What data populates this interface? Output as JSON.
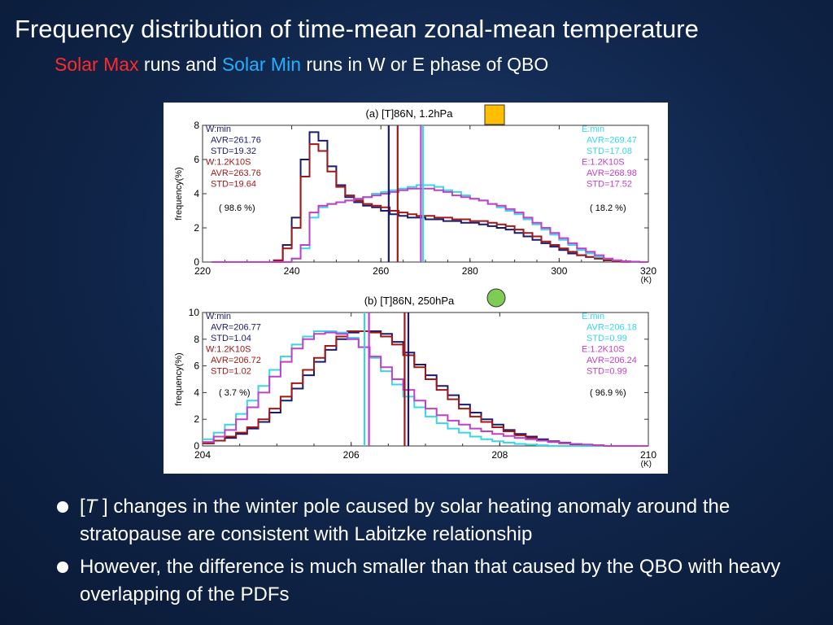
{
  "slide": {
    "title": "Frequency distribution of time-mean zonal-mean temperature",
    "subtitle_part1": "Solar Max",
    "subtitle_part2": " runs and ",
    "subtitle_part3": "Solar Min",
    "subtitle_part4": " runs in W or E phase of QBO",
    "bullet1_open": "[",
    "bullet1_T": "T",
    "bullet1_rest": " ] changes in the winter pole caused by solar heating anomaly around the stratopause are consistent with Labitzke relationship",
    "bullet2": "However, the difference is much smaller than that caused by the QBO with heavy overlapping of the PDFs"
  },
  "colors": {
    "w_min": "#1a1a6e",
    "w_1k": "#a01818",
    "e_min": "#38d6e8",
    "e_1k": "#c040c8",
    "marker_a": "#ffbf00",
    "marker_b": "#7ecb55"
  },
  "chart_data": [
    {
      "type": "line",
      "title": "(a) [T]86N, 1.2hPa",
      "ylabel": "frequency(%)",
      "unit": "(K)",
      "xlim": [
        220,
        320
      ],
      "ylim": [
        0,
        8
      ],
      "xticks": [
        220,
        240,
        260,
        280,
        300,
        320
      ],
      "yticks": [
        0,
        2,
        4,
        6,
        8
      ],
      "left_pct": "( 98.6 %)",
      "right_pct": "( 18.2 %)",
      "annotations_left": [
        "W:min",
        "AVR=261.76",
        "STD=19.32",
        "W:1.2K10S",
        "AVR=263.76",
        "STD=19.64"
      ],
      "annotations_right": [
        "E:min",
        "AVR=269.47",
        "STD=17.08",
        "E:1.2K10S",
        "AVR=268.98",
        "STD=17.52"
      ],
      "means": {
        "w_min": 261.76,
        "w_1k": 263.76,
        "e_min": 269.47,
        "e_1k": 268.98
      },
      "bin_start": 222,
      "bin_width": 2,
      "series": [
        {
          "key": "w_min",
          "values": [
            0,
            0,
            0,
            0,
            0,
            0,
            0,
            0.1,
            1.0,
            2.6,
            6.0,
            7.6,
            7.1,
            5.6,
            4.5,
            3.8,
            3.5,
            3.3,
            3.2,
            3.0,
            2.8,
            2.7,
            2.6,
            2.6,
            2.5,
            2.5,
            2.4,
            2.4,
            2.3,
            2.3,
            2.2,
            2.1,
            2.0,
            1.9,
            1.7,
            1.5,
            1.3,
            1.1,
            0.9,
            0.7,
            0.5,
            0.4,
            0.3,
            0.2,
            0.1,
            0.05,
            0.02,
            0.01,
            0.0
          ]
        },
        {
          "key": "w_1k",
          "values": [
            0,
            0,
            0,
            0,
            0,
            0,
            0,
            0.1,
            0.8,
            2.0,
            5.0,
            6.9,
            6.5,
            5.3,
            4.4,
            3.9,
            3.6,
            3.4,
            3.3,
            3.2,
            3.0,
            2.9,
            2.8,
            2.7,
            2.7,
            2.6,
            2.6,
            2.5,
            2.5,
            2.4,
            2.4,
            2.3,
            2.2,
            2.1,
            1.9,
            1.7,
            1.5,
            1.2,
            1.0,
            0.8,
            0.6,
            0.4,
            0.3,
            0.2,
            0.1,
            0.05,
            0.02,
            0.01,
            0.0
          ]
        },
        {
          "key": "e_min",
          "values": [
            0,
            0,
            0,
            0,
            0,
            0,
            0,
            0,
            0,
            0.2,
            0.8,
            2.6,
            3.2,
            3.4,
            3.5,
            3.6,
            3.7,
            3.8,
            4.0,
            4.1,
            4.2,
            4.3,
            4.4,
            4.5,
            4.5,
            4.4,
            4.2,
            4.1,
            3.9,
            3.7,
            3.6,
            3.4,
            3.2,
            3.0,
            2.8,
            2.5,
            2.2,
            1.9,
            1.6,
            1.3,
            1.0,
            0.7,
            0.5,
            0.3,
            0.2,
            0.1,
            0.05,
            0.0,
            0.0
          ]
        },
        {
          "key": "e_1k",
          "values": [
            0,
            0,
            0,
            0,
            0,
            0,
            0,
            0,
            0,
            0.2,
            1.0,
            2.9,
            3.3,
            3.4,
            3.5,
            3.6,
            3.7,
            3.8,
            3.9,
            4.0,
            4.1,
            4.2,
            4.3,
            4.3,
            4.3,
            4.2,
            4.1,
            3.9,
            3.8,
            3.7,
            3.6,
            3.4,
            3.3,
            3.1,
            2.9,
            2.6,
            2.3,
            2.0,
            1.7,
            1.4,
            1.1,
            0.8,
            0.6,
            0.4,
            0.2,
            0.1,
            0.05,
            0.02,
            0.0
          ]
        }
      ]
    },
    {
      "type": "line",
      "title": "(b) [T]86N, 250hPa",
      "ylabel": "frequency(%)",
      "unit": "(K)",
      "xlim": [
        204,
        210
      ],
      "ylim": [
        0,
        10
      ],
      "xticks": [
        204,
        206,
        208,
        210
      ],
      "yticks": [
        0,
        2,
        4,
        6,
        8,
        10
      ],
      "xtick_labels": [
        "204",
        "206",
        "208",
        "210"
      ],
      "left_pct": "( 3.7 %)",
      "right_pct": "( 96.9 %)",
      "annotations_left": [
        "W:min",
        "AVR=206.77",
        "STD=1.04",
        "W:1.2K10S",
        "AVR=206.72",
        "STD=1.02"
      ],
      "annotations_right": [
        "E:min",
        "AVR=206.18",
        "STD=0.99",
        "E:1.2K10S",
        "AVR=206.24",
        "STD=0.99"
      ],
      "means": {
        "w_min": 206.77,
        "w_1k": 206.72,
        "e_min": 206.18,
        "e_1k": 206.24
      },
      "bin_start": 204.0,
      "bin_width": 0.15,
      "series": [
        {
          "key": "w_min",
          "values": [
            0.2,
            0.4,
            0.6,
            0.9,
            1.3,
            1.8,
            2.5,
            3.4,
            4.3,
            5.3,
            6.3,
            7.2,
            8.0,
            8.5,
            8.6,
            8.6,
            8.4,
            7.8,
            7.0,
            6.1,
            5.3,
            4.5,
            3.8,
            3.1,
            2.5,
            2.0,
            1.6,
            1.2,
            0.9,
            0.7,
            0.5,
            0.35,
            0.25,
            0.15,
            0.1,
            0.05,
            0.0,
            0.0,
            0.0,
            0.0
          ]
        },
        {
          "key": "w_1k",
          "values": [
            0.2,
            0.4,
            0.7,
            1.0,
            1.4,
            2.0,
            2.8,
            3.7,
            4.7,
            5.7,
            6.6,
            7.5,
            8.2,
            8.6,
            8.6,
            8.5,
            8.2,
            7.6,
            6.8,
            5.9,
            5.0,
            4.2,
            3.5,
            2.8,
            2.2,
            1.8,
            1.4,
            1.1,
            0.8,
            0.6,
            0.4,
            0.3,
            0.2,
            0.12,
            0.08,
            0.04,
            0.0,
            0.0,
            0.0,
            0.0
          ]
        },
        {
          "key": "e_min",
          "values": [
            0.5,
            1.0,
            1.6,
            2.4,
            3.4,
            4.5,
            5.7,
            6.7,
            7.6,
            8.2,
            8.6,
            8.6,
            8.5,
            8.1,
            7.4,
            6.6,
            5.6,
            4.6,
            3.7,
            2.9,
            2.2,
            1.7,
            1.3,
            1.0,
            0.7,
            0.5,
            0.35,
            0.25,
            0.15,
            0.1,
            0.05,
            0.0,
            0.0,
            0.0,
            0.0,
            0.0,
            0.0,
            0.0,
            0.0,
            0.0
          ]
        },
        {
          "key": "e_1k",
          "values": [
            0.3,
            0.7,
            1.2,
            2.0,
            2.9,
            4.0,
            5.2,
            6.3,
            7.3,
            8.0,
            8.4,
            8.5,
            8.4,
            8.0,
            7.4,
            6.7,
            5.9,
            5.0,
            4.2,
            3.4,
            2.8,
            2.3,
            1.9,
            1.6,
            1.3,
            1.1,
            0.9,
            0.75,
            0.6,
            0.5,
            0.4,
            0.3,
            0.22,
            0.15,
            0.1,
            0.05,
            0.0,
            0.0,
            0.0,
            0.0
          ]
        }
      ]
    }
  ]
}
